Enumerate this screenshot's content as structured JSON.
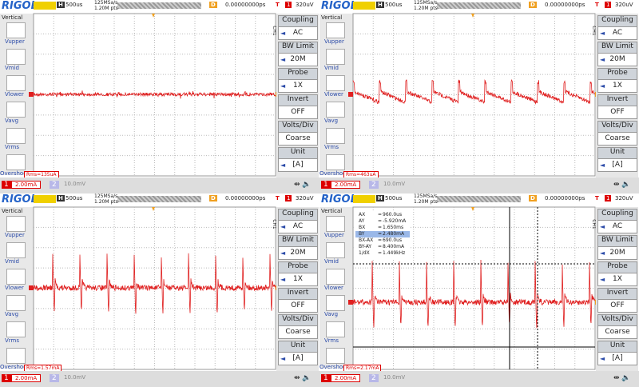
{
  "screen": {
    "logo": "RIGOL",
    "timebase": "500us",
    "sample_rate": "125MSa/s",
    "memory": "1.20M pts",
    "delay": "0.00000000ps",
    "trigger_level": "320uV",
    "vertical": "Vertical",
    "measure_items": [
      "Vupper",
      "Vmid",
      "Vlower",
      "Vavg",
      "Vrms",
      "Overshoot"
    ],
    "menu": [
      {
        "label": "Coupling",
        "value": "AC"
      },
      {
        "label": "BW Limit",
        "value": "20M"
      },
      {
        "label": "Probe",
        "value": "1X"
      },
      {
        "label": "Invert",
        "value": "OFF"
      },
      {
        "label": "Volts/Div",
        "value": "Coarse"
      },
      {
        "label": "Unit",
        "value": "[A]"
      }
    ],
    "channel_side": "CH1",
    "ch1": "1",
    "ch1_scale": "2.00mA",
    "ch2": "2",
    "ch2_scale": "10.0mV"
  },
  "panels": [
    {
      "rms": "Rms=135uA"
    },
    {
      "rms": "Rms=463uA"
    },
    {
      "rms": "Rms=1.57mA"
    },
    {
      "rms": "Rms=2.17mA",
      "cursors": [
        [
          "AX",
          "=",
          "960.0us"
        ],
        [
          "AY",
          "=",
          "-5.920mA"
        ],
        [
          "BX",
          "=",
          "1.650ms"
        ],
        [
          "BY",
          "=",
          "2.480mA"
        ],
        [
          "BX-AX",
          "=",
          "690.0us"
        ],
        [
          "BY-AY",
          "=",
          "8.400mA"
        ],
        [
          "1/dX",
          "=",
          "1.449kHz"
        ]
      ]
    }
  ]
}
